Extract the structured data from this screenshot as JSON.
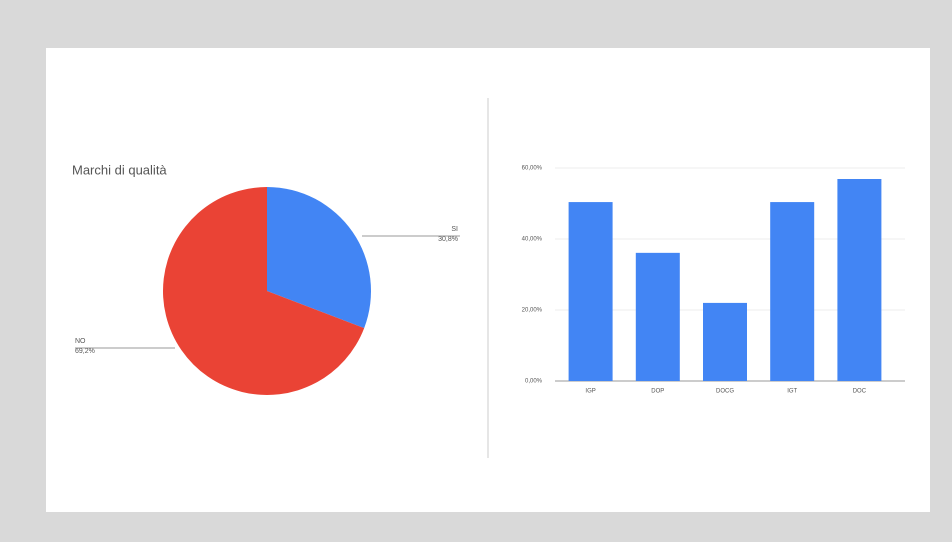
{
  "chart_data": [
    {
      "type": "pie",
      "title": "Marchi di qualità",
      "categories": [
        "SI",
        "NO"
      ],
      "values": [
        30.8,
        69.2
      ],
      "value_labels": [
        "30,8%",
        "69,2%"
      ],
      "colors": [
        "#4285f4",
        "#ea4335"
      ]
    },
    {
      "type": "bar",
      "categories": [
        "IGP",
        "DOP",
        "DOCG",
        "IGT",
        "DOC"
      ],
      "values": [
        50.4,
        36.1,
        22.0,
        50.4,
        56.9
      ],
      "color": "#4285f4",
      "ylim": [
        0,
        60
      ],
      "yticks": [
        {
          "value": 0,
          "label": "0,00%"
        },
        {
          "value": 20,
          "label": "20,00%"
        },
        {
          "value": 40,
          "label": "40,00%"
        },
        {
          "value": 60,
          "label": "60,00%"
        }
      ],
      "grid": true
    }
  ]
}
